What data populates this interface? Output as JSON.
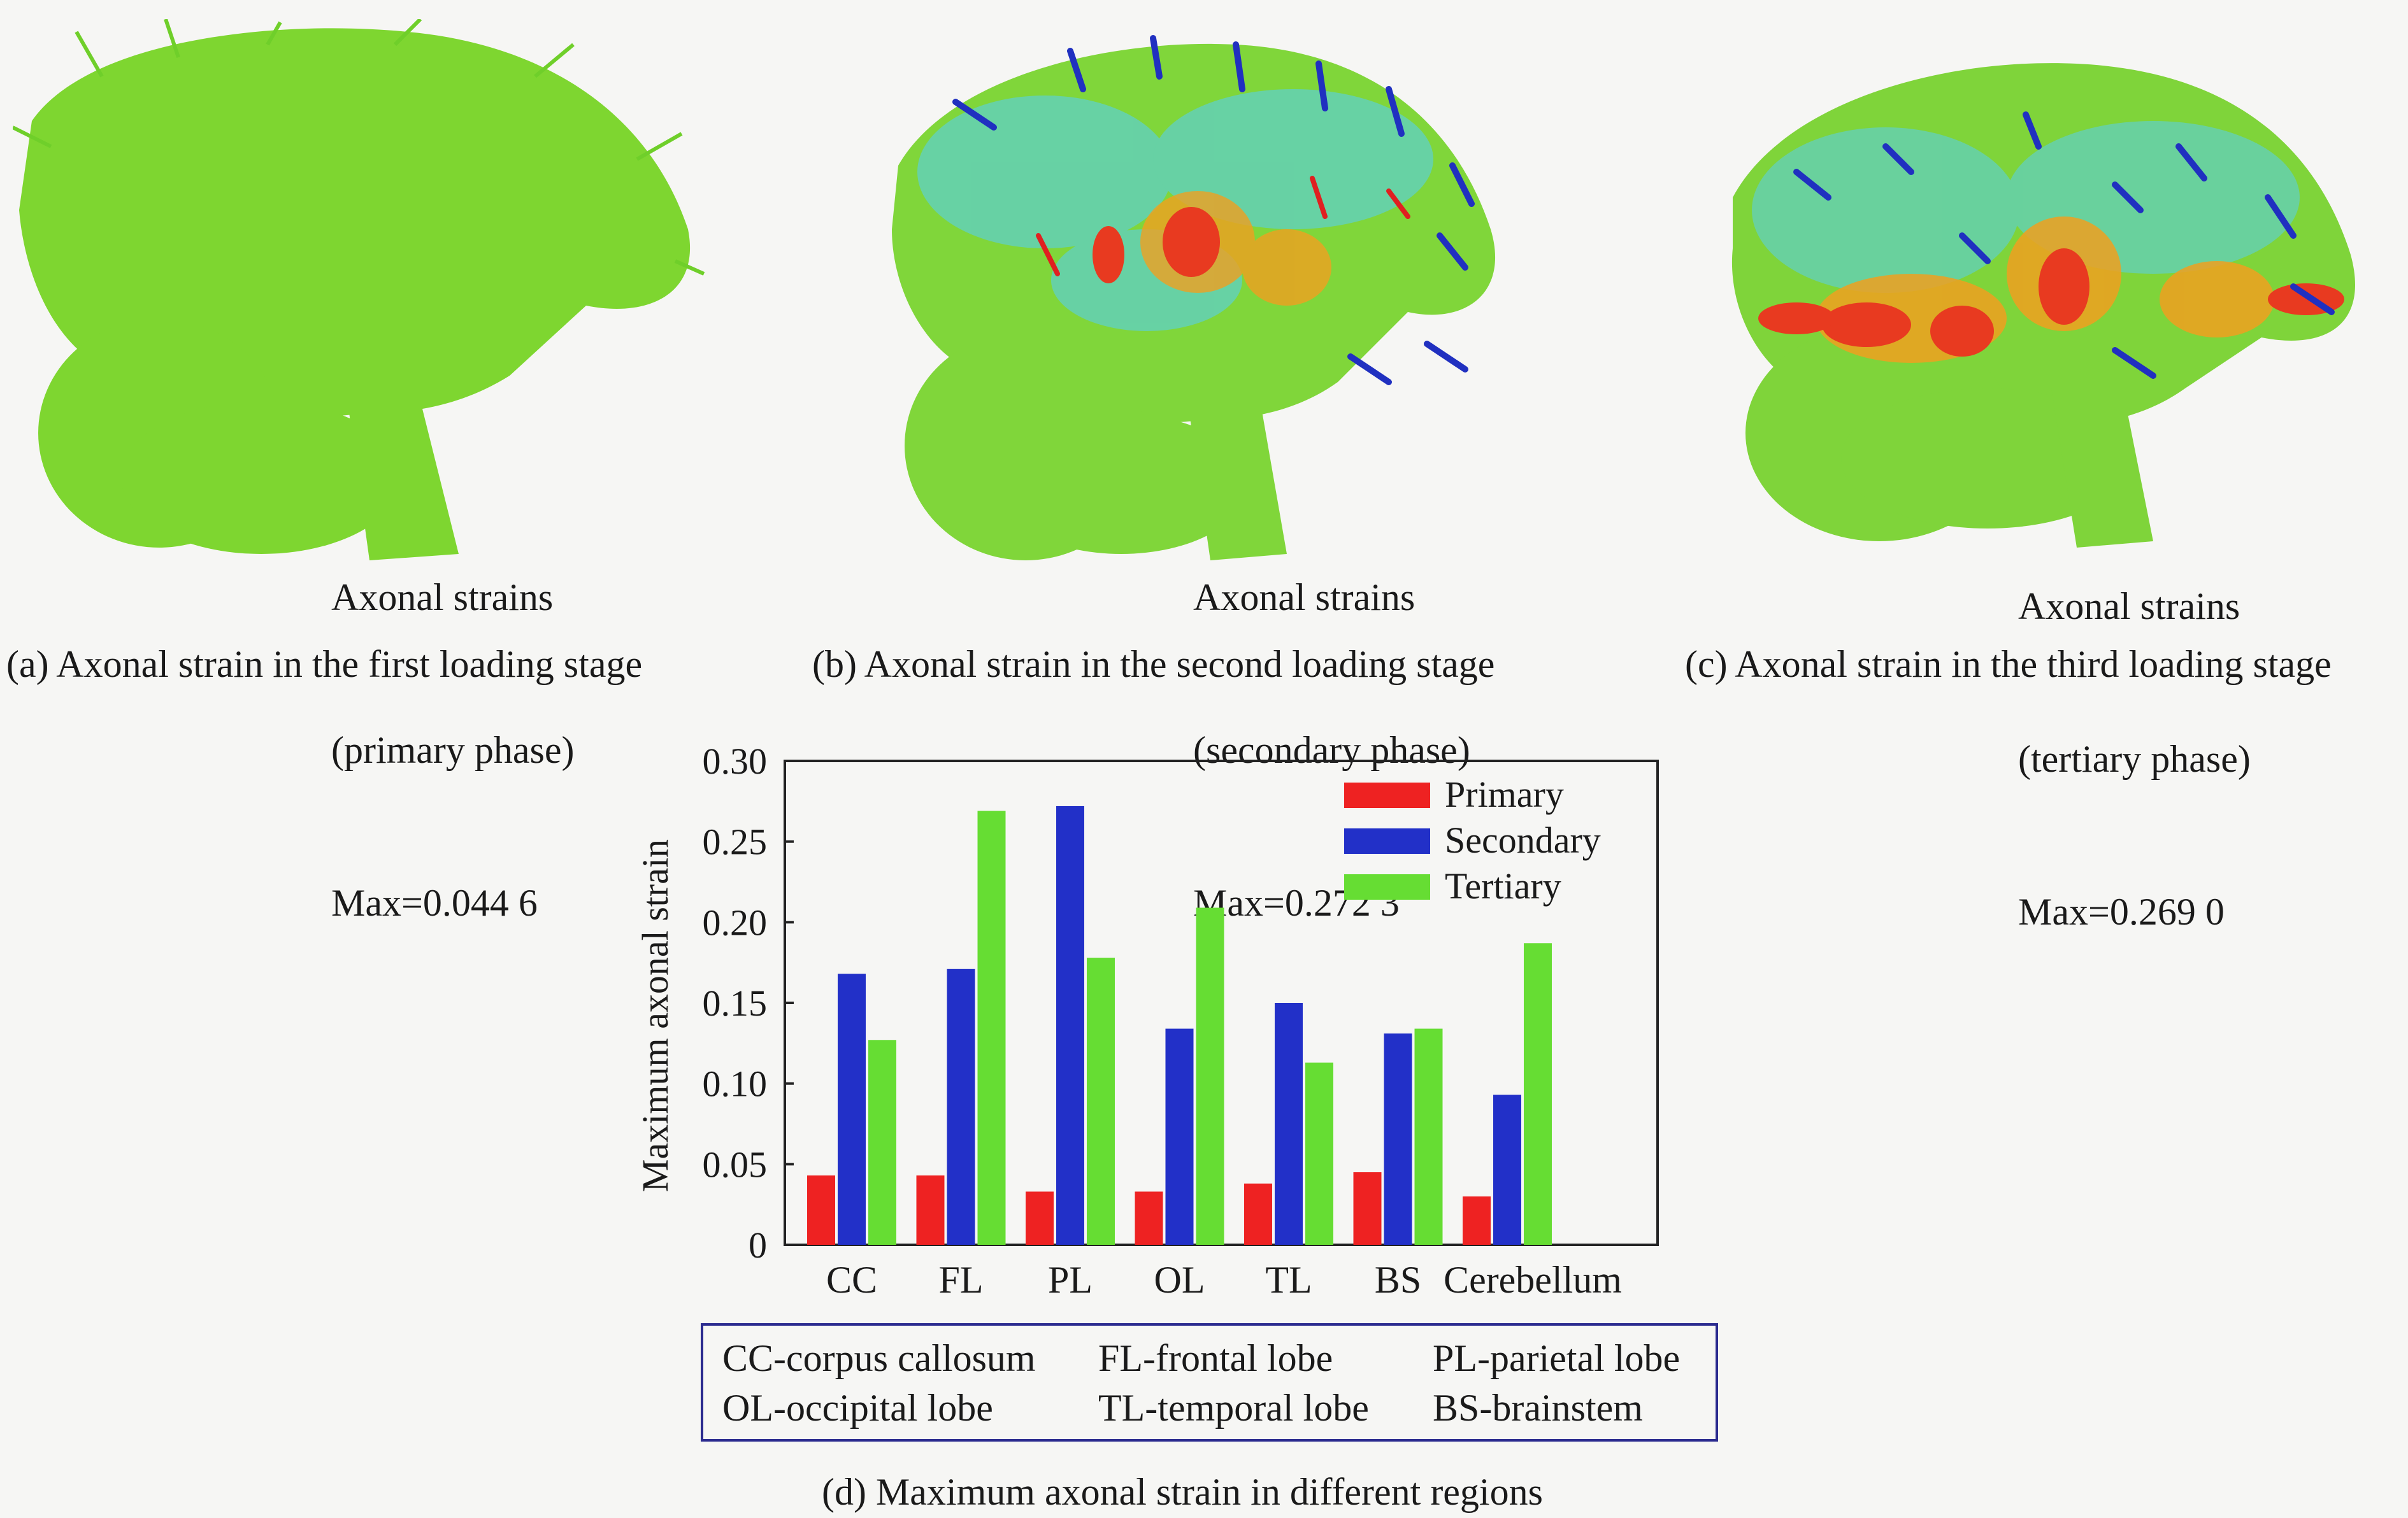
{
  "panels": [
    {
      "id": "a",
      "strain_lines": [
        "Axonal strains",
        "(primary phase)",
        "Max=0.044 6"
      ],
      "caption": "(a) Axonal strain in the first loading stage"
    },
    {
      "id": "b",
      "strain_lines": [
        "Axonal strains",
        "(secondary phase)",
        "Max=0.272 3"
      ],
      "caption": "(b) Axonal strain in the second loading stage"
    },
    {
      "id": "c",
      "strain_lines": [
        "Axonal strains",
        "(tertiary phase)",
        "Max=0.269 0"
      ],
      "caption": "(c) Axonal strain in the third loading stage"
    }
  ],
  "chart_data": {
    "type": "bar",
    "title": "",
    "xlabel": "",
    "ylabel": "Maximum axonal strain",
    "categories": [
      "CC",
      "FL",
      "PL",
      "OL",
      "TL",
      "BS",
      "Cerebellum"
    ],
    "series": [
      {
        "name": "Primary",
        "color": "#ee2222",
        "values": [
          0.043,
          0.043,
          0.033,
          0.033,
          0.038,
          0.045,
          0.03
        ]
      },
      {
        "name": "Secondary",
        "color": "#2230c8",
        "values": [
          0.168,
          0.171,
          0.272,
          0.134,
          0.15,
          0.131,
          0.093
        ]
      },
      {
        "name": "Tertiary",
        "color": "#66dd33",
        "values": [
          0.127,
          0.269,
          0.178,
          0.209,
          0.113,
          0.134,
          0.187
        ]
      }
    ],
    "ylim": [
      0,
      0.3
    ],
    "yticks": [
      "0",
      "0.05",
      "0.10",
      "0.15",
      "0.20",
      "0.25",
      "0.30"
    ],
    "legend": "top-right",
    "grid": false,
    "caption": "(d) Maximum axonal strain in different regions"
  },
  "abbreviations": [
    "CC-corpus callosum",
    "FL-frontal lobe",
    "PL-parietal lobe",
    "OL-occipital lobe",
    "TL-temporal lobe",
    "BS-brainstem"
  ]
}
